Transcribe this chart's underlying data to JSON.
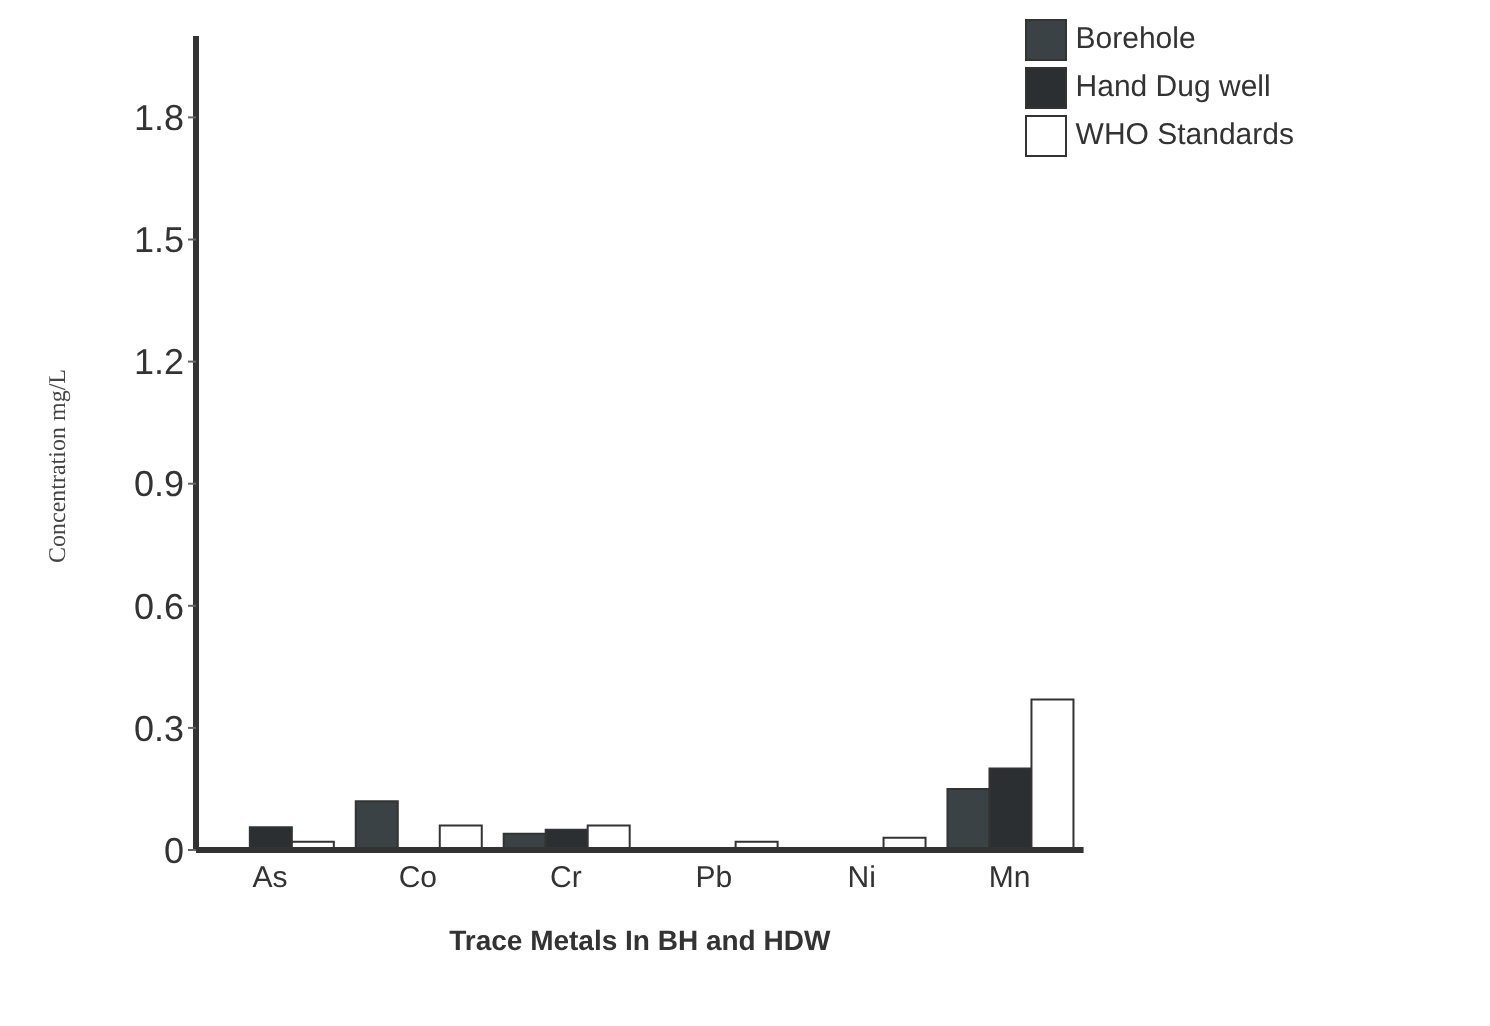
{
  "chart_data": {
    "type": "bar",
    "xlabel": "Trace Metals In BH and HDW",
    "ylabel": "Concentration  mg/L",
    "categories": [
      "As",
      "Co",
      "Cr",
      "Pb",
      "Ni",
      "Mn"
    ],
    "series": [
      {
        "name": "Borehole",
        "color": "#3a4245",
        "values": [
          0,
          0.12,
          0.04,
          0,
          0,
          0.15
        ]
      },
      {
        "name": "Hand Dug well",
        "color": "#2b2f31",
        "values": [
          0.056,
          0,
          0.05,
          0,
          0,
          0.2
        ]
      },
      {
        "name": "WHO  Standards",
        "color": "#ffffff",
        "values": [
          0.02,
          0.06,
          0.06,
          0.02,
          0.03,
          0.37
        ]
      }
    ],
    "ylim": [
      0,
      2
    ],
    "yticks": [
      0,
      0.3,
      0.6,
      0.9,
      1.2,
      1.5,
      1.8
    ],
    "grid": false,
    "legend": "top right"
  }
}
